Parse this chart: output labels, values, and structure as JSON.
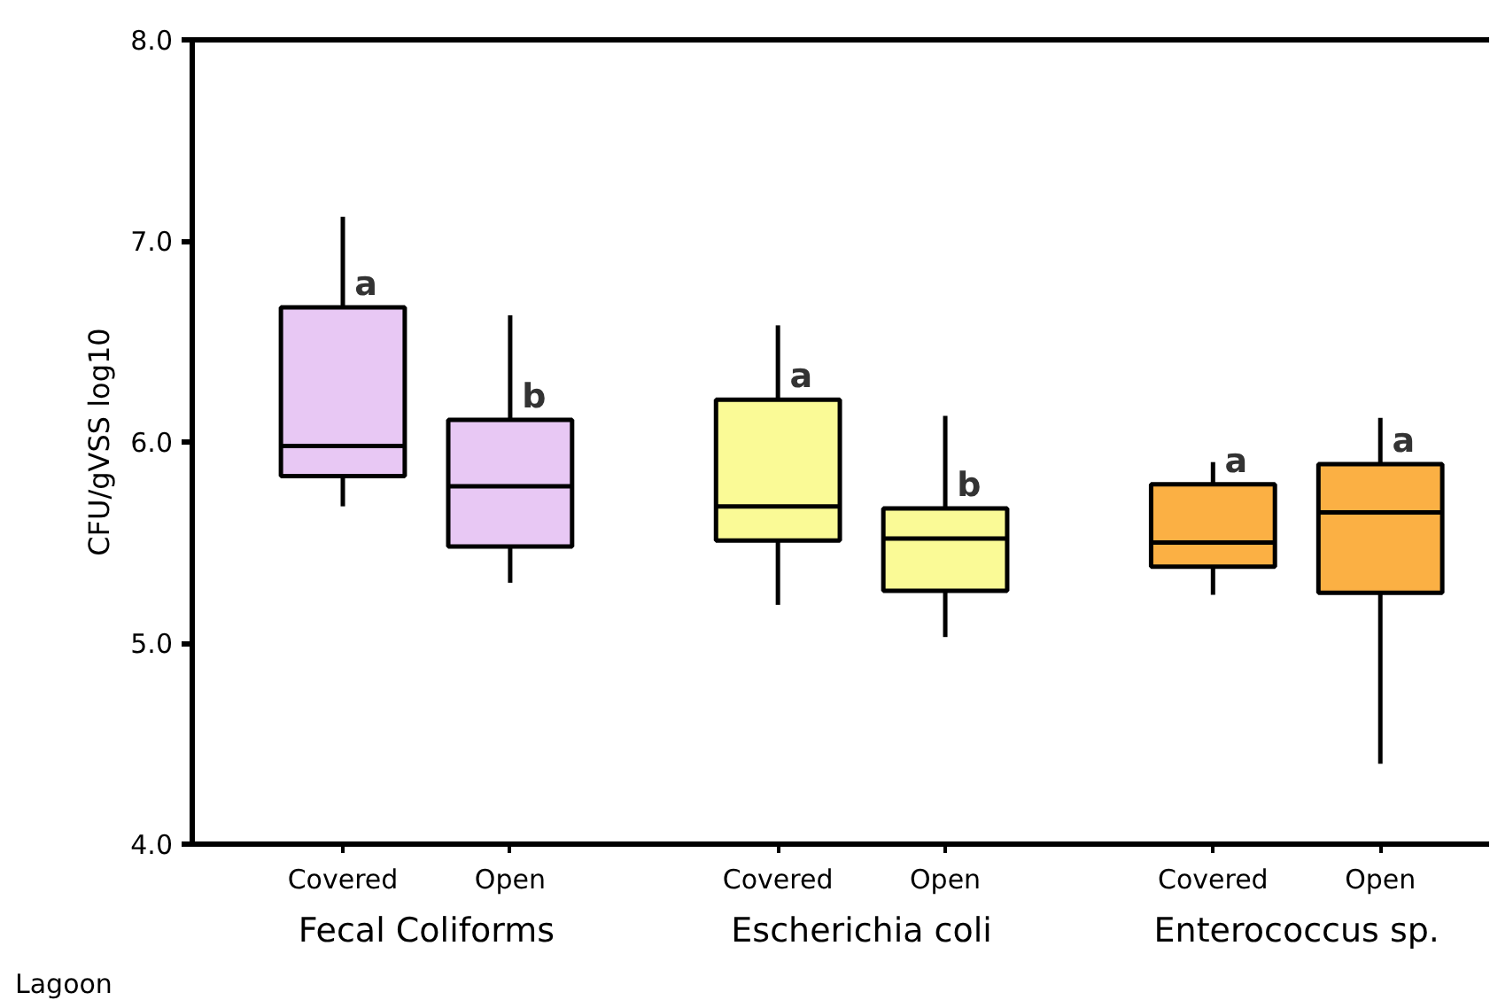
{
  "chart_data": {
    "type": "box",
    "ylabel": "CFU/gVSS log10",
    "xlabel": "Lagoon",
    "categories": [
      "Covered",
      "Open",
      "Covered",
      "Open",
      "Covered",
      "Open"
    ],
    "ylim": [
      4.0,
      8.0
    ],
    "yticks": [
      {
        "value": 4,
        "label": "4.0"
      },
      {
        "value": 5,
        "label": "5.0"
      },
      {
        "value": 6,
        "label": "6.0"
      },
      {
        "value": 7,
        "label": "7.0"
      },
      {
        "value": 8,
        "label": "8.0"
      }
    ],
    "grid": false,
    "annotations": [
      "Fecal Coliforms",
      "Escherichia coli",
      "Enterococcus sp."
    ],
    "series": [
      {
        "color": "#e8c8f4",
        "value_labels": [
          "a",
          "b",
          null,
          null,
          null,
          null
        ],
        "boxes": [
          {
            "low": 5.68,
            "q1": 5.83,
            "median": 5.98,
            "q3": 6.67,
            "high": 7.12
          },
          {
            "low": 5.3,
            "q1": 5.48,
            "median": 5.78,
            "q3": 6.11,
            "high": 6.63
          },
          null,
          null,
          null,
          null
        ]
      },
      {
        "color": "#fafa96",
        "value_labels": [
          null,
          null,
          "a",
          "b",
          null,
          null
        ],
        "boxes": [
          null,
          null,
          {
            "low": 5.19,
            "q1": 5.51,
            "median": 5.68,
            "q3": 6.21,
            "high": 6.58
          },
          {
            "low": 5.03,
            "q1": 5.26,
            "median": 5.52,
            "q3": 5.67,
            "high": 6.13
          },
          null,
          null
        ]
      },
      {
        "color": "#fbb044",
        "value_labels": [
          null,
          null,
          null,
          null,
          "a",
          "a"
        ],
        "boxes": [
          null,
          null,
          null,
          null,
          {
            "low": 5.24,
            "q1": 5.38,
            "median": 5.5,
            "q3": 5.79,
            "high": 5.9
          },
          {
            "low": 4.4,
            "q1": 5.25,
            "median": 5.65,
            "q3": 5.89,
            "high": 6.12
          }
        ]
      }
    ]
  }
}
